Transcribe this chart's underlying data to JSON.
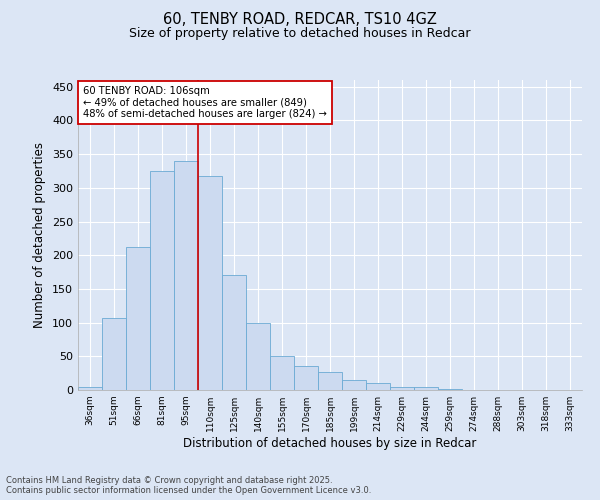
{
  "title_line1": "60, TENBY ROAD, REDCAR, TS10 4GZ",
  "title_line2": "Size of property relative to detached houses in Redcar",
  "xlabel": "Distribution of detached houses by size in Redcar",
  "ylabel": "Number of detached properties",
  "categories": [
    "36sqm",
    "51sqm",
    "66sqm",
    "81sqm",
    "95sqm",
    "110sqm",
    "125sqm",
    "140sqm",
    "155sqm",
    "170sqm",
    "185sqm",
    "199sqm",
    "214sqm",
    "229sqm",
    "244sqm",
    "259sqm",
    "274sqm",
    "288sqm",
    "303sqm",
    "318sqm",
    "333sqm"
  ],
  "values": [
    5,
    107,
    212,
    325,
    340,
    318,
    170,
    100,
    50,
    35,
    27,
    15,
    10,
    4,
    4,
    1,
    0,
    0,
    0,
    0,
    0
  ],
  "bar_color": "#ccdaf0",
  "bar_edge_color": "#6aaad4",
  "vline_x_idx": 4.5,
  "vline_color": "#cc0000",
  "annotation_text_line1": "60 TENBY ROAD: 106sqm",
  "annotation_text_line2": "← 49% of detached houses are smaller (849)",
  "annotation_text_line3": "48% of semi-detached houses are larger (824) →",
  "annotation_box_color": "#ffffff",
  "annotation_box_edge": "#cc0000",
  "background_color": "#dce6f5",
  "grid_color": "#ffffff",
  "ylim": [
    0,
    460
  ],
  "yticks": [
    0,
    50,
    100,
    150,
    200,
    250,
    300,
    350,
    400,
    450
  ],
  "footer_line1": "Contains HM Land Registry data © Crown copyright and database right 2025.",
  "footer_line2": "Contains public sector information licensed under the Open Government Licence v3.0."
}
